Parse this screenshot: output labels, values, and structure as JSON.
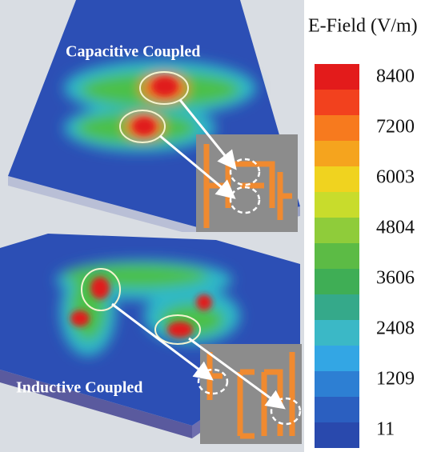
{
  "colorbar": {
    "title": "E-Field (V/m)",
    "labels": [
      8400,
      7200,
      6003,
      4804,
      3606,
      2408,
      1209,
      11
    ]
  },
  "panels": [
    {
      "label": "Capacitive Coupled"
    },
    {
      "label": "Inductive Coupled"
    }
  ]
}
